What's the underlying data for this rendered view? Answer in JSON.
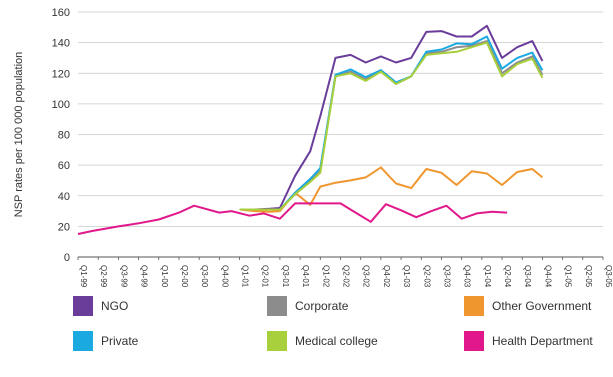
{
  "chart_data": {
    "type": "line",
    "ylabel": "NSP rates per 100 000 population",
    "ylim": [
      0,
      160
    ],
    "yticks": [
      0,
      20,
      40,
      60,
      80,
      100,
      120,
      140,
      160
    ],
    "grid": "horizontal",
    "legend_position": "bottom",
    "categories": [
      "Q1-99",
      "Q2-99",
      "Q3-99",
      "Q4-99",
      "Q1-00",
      "Q2-00",
      "Q3-00",
      "Q4-00",
      "Q1-01",
      "Q2-01",
      "Q3-01",
      "Q4-01",
      "Q1-02",
      "Q2-02",
      "Q3-02",
      "Q4-02",
      "Q1-03",
      "Q2-03",
      "Q3-03",
      "Q4-03",
      "Q1-04",
      "Q2-04",
      "Q3-04",
      "Q4-04",
      "Q1-05",
      "Q2-05",
      "Q3-05"
    ],
    "x_ticks": [
      {
        "label": "Q1-99",
        "x": 0
      },
      {
        "label": "Q2-99",
        "x": 1
      },
      {
        "label": "Q3-99",
        "x": 2
      },
      {
        "label": "Q4-99",
        "x": 3
      },
      {
        "label": "Q1-00",
        "x": 4
      },
      {
        "label": "Q2-00",
        "x": 5
      },
      {
        "label": "Q3-00",
        "x": 6
      },
      {
        "label": "Q4-00",
        "x": 7
      },
      {
        "label": "Q1-01",
        "x": 8
      },
      {
        "label": "Q2-01",
        "x": 9
      },
      {
        "label": "Q3-01",
        "x": 10
      },
      {
        "label": "Q4-01",
        "x": 11
      },
      {
        "label": "Q1-02",
        "x": 12
      },
      {
        "label": "Q2-02",
        "x": 13
      },
      {
        "label": "Q3-02",
        "x": 14
      },
      {
        "label": "Q4-02",
        "x": 15
      },
      {
        "label": "Q1-03",
        "x": 16
      },
      {
        "label": "Q2-03",
        "x": 17
      },
      {
        "label": "Q3-03",
        "x": 18
      },
      {
        "label": "Q4-03",
        "x": 19
      },
      {
        "label": "Q1-04",
        "x": 20
      },
      {
        "label": "Q2-04",
        "x": 21
      },
      {
        "label": "Q3-04",
        "x": 22
      },
      {
        "label": "Q4-04",
        "x": 23
      },
      {
        "label": "Q1-05",
        "x": 24
      },
      {
        "label": "Q2-05",
        "x": 25
      },
      {
        "label": "Q3-05",
        "x": 26
      }
    ],
    "series": [
      {
        "name": "NGO",
        "color": "#6a3d9a",
        "points": [
          [
            8,
            31
          ],
          [
            8.75,
            31
          ],
          [
            9.5,
            31.5
          ],
          [
            10,
            32
          ],
          [
            10.75,
            53
          ],
          [
            11.5,
            69
          ],
          [
            12,
            92
          ],
          [
            12.75,
            130
          ],
          [
            13.5,
            132
          ],
          [
            14.25,
            127
          ],
          [
            15,
            131
          ],
          [
            15.75,
            127
          ],
          [
            16.5,
            130
          ],
          [
            17.25,
            147
          ],
          [
            18,
            147.5
          ],
          [
            18.75,
            144
          ],
          [
            19.5,
            144
          ],
          [
            20.25,
            151
          ],
          [
            21,
            130
          ],
          [
            21.75,
            137
          ],
          [
            22.5,
            141
          ],
          [
            23,
            128
          ]
        ]
      },
      {
        "name": "Corporate",
        "color": "#8c8c8c",
        "points": [
          [
            8,
            31
          ],
          [
            8.75,
            31
          ],
          [
            9.5,
            31
          ],
          [
            10,
            31
          ],
          [
            10.75,
            41
          ],
          [
            11.5,
            50
          ],
          [
            12,
            57
          ],
          [
            12.75,
            118
          ],
          [
            13.5,
            121
          ],
          [
            14.25,
            116
          ],
          [
            15,
            122
          ],
          [
            15.75,
            113
          ],
          [
            16.5,
            118
          ],
          [
            17.25,
            133
          ],
          [
            18,
            134
          ],
          [
            18.75,
            137
          ],
          [
            19.5,
            138
          ],
          [
            20.25,
            141
          ],
          [
            21,
            120
          ],
          [
            21.75,
            127
          ],
          [
            22.5,
            131
          ],
          [
            23,
            119
          ]
        ]
      },
      {
        "name": "Other Government",
        "color": "#f0962e",
        "points": [
          [
            8,
            31
          ],
          [
            8.75,
            30
          ],
          [
            9.5,
            29.5
          ],
          [
            10,
            30
          ],
          [
            10.75,
            42
          ],
          [
            11.5,
            34
          ],
          [
            12,
            46
          ],
          [
            12.75,
            48.5
          ],
          [
            13.5,
            50
          ],
          [
            14.25,
            52
          ],
          [
            15,
            58.5
          ],
          [
            15.75,
            48
          ],
          [
            16.5,
            45
          ],
          [
            17.25,
            57.5
          ],
          [
            18,
            55
          ],
          [
            18.75,
            47
          ],
          [
            19.5,
            56
          ],
          [
            20.25,
            54.5
          ],
          [
            21,
            47
          ],
          [
            21.75,
            55.5
          ],
          [
            22.5,
            57.5
          ],
          [
            23,
            52
          ]
        ]
      },
      {
        "name": "Private",
        "color": "#1ba9e1",
        "points": [
          [
            8,
            31
          ],
          [
            8.75,
            31
          ],
          [
            9.5,
            31
          ],
          [
            10,
            31
          ],
          [
            10.75,
            42
          ],
          [
            11.5,
            51
          ],
          [
            12,
            58
          ],
          [
            12.75,
            119
          ],
          [
            13.5,
            122.5
          ],
          [
            14.25,
            117.5
          ],
          [
            15,
            122
          ],
          [
            15.75,
            114
          ],
          [
            16.5,
            118
          ],
          [
            17.25,
            134
          ],
          [
            18,
            135.5
          ],
          [
            18.75,
            139.5
          ],
          [
            19.5,
            139
          ],
          [
            20.25,
            144
          ],
          [
            21,
            123
          ],
          [
            21.75,
            130
          ],
          [
            22.5,
            133.5
          ],
          [
            23,
            122
          ]
        ]
      },
      {
        "name": "Medical college",
        "color": "#a8cf3c",
        "points": [
          [
            8,
            31
          ],
          [
            8.75,
            31
          ],
          [
            9.5,
            31
          ],
          [
            10,
            31
          ],
          [
            10.75,
            41
          ],
          [
            11.5,
            49
          ],
          [
            12,
            55
          ],
          [
            12.75,
            118
          ],
          [
            13.5,
            120
          ],
          [
            14.25,
            115
          ],
          [
            15,
            121
          ],
          [
            15.75,
            113
          ],
          [
            16.5,
            118
          ],
          [
            17.25,
            132
          ],
          [
            18,
            133
          ],
          [
            18.75,
            134
          ],
          [
            19.5,
            137
          ],
          [
            20.25,
            140
          ],
          [
            21,
            118
          ],
          [
            21.75,
            126
          ],
          [
            22.5,
            129.5
          ],
          [
            23,
            117
          ]
        ]
      },
      {
        "name": "Health Department",
        "color": "#e0188b",
        "points": [
          [
            0,
            15
          ],
          [
            0.7,
            17
          ],
          [
            2,
            20
          ],
          [
            3,
            22
          ],
          [
            4,
            24.5
          ],
          [
            5,
            29
          ],
          [
            5.75,
            33.5
          ],
          [
            7,
            29
          ],
          [
            7.6,
            30
          ],
          [
            8.5,
            27
          ],
          [
            9.2,
            28.5
          ],
          [
            10,
            25
          ],
          [
            10.75,
            35
          ],
          [
            11.5,
            35
          ],
          [
            12.25,
            35
          ],
          [
            13,
            35
          ],
          [
            13.75,
            29
          ],
          [
            14.5,
            23
          ],
          [
            15.25,
            34.5
          ],
          [
            16,
            30.5
          ],
          [
            16.75,
            26
          ],
          [
            17.5,
            30
          ],
          [
            18.25,
            33.5
          ],
          [
            19,
            25
          ],
          [
            19.75,
            28.5
          ],
          [
            20.5,
            29.5
          ],
          [
            21.25,
            29
          ]
        ]
      }
    ]
  }
}
